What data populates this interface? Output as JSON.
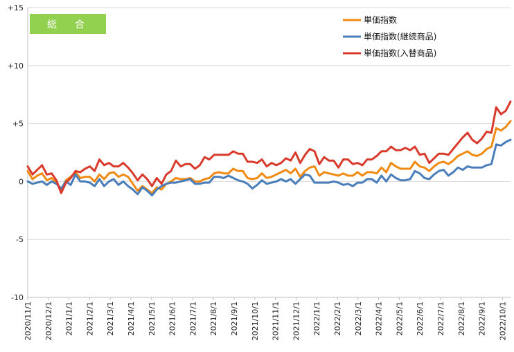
{
  "chart_data": {
    "type": "line",
    "title": "総　合",
    "badge_color": "#92d050",
    "ylim": [
      -10,
      15
    ],
    "y_ticks": [
      15,
      10,
      5,
      0,
      -5,
      -10
    ],
    "y_tick_labels": [
      "+15",
      "+10",
      "+5",
      "0",
      "-5",
      "-10"
    ],
    "x_tick_labels": [
      "2020/11/1",
      "2020/12/1",
      "2021/1/1",
      "2021/2/1",
      "2021/3/1",
      "2021/4/1",
      "2021/5/1",
      "2021/6/1",
      "2021/7/1",
      "2021/8/1",
      "2021/9/1",
      "2021/10/1",
      "2021/11/1",
      "2021/12/1",
      "2022/1/1",
      "2022/2/1",
      "2022/3/1",
      "2022/4/1",
      "2022/5/1",
      "2022/6/1",
      "2022/7/1",
      "2022/8/1",
      "2022/9/1",
      "2022/10/1"
    ],
    "grid": true,
    "legend_position": "top-right",
    "series": [
      {
        "name": "単価指数",
        "color": "#f08a12",
        "values": [
          0.9,
          0.2,
          0.5,
          0.7,
          0.1,
          0.3,
          -0.1,
          -0.7,
          0.1,
          0.4,
          0.8,
          0.3,
          0.4,
          0.4,
          0.0,
          0.6,
          0.2,
          0.7,
          0.8,
          0.4,
          0.6,
          0.4,
          -0.2,
          -0.8,
          -0.4,
          -0.7,
          -1.0,
          -0.5,
          -0.7,
          -0.2,
          0.0,
          0.3,
          0.2,
          0.2,
          0.3,
          0.0,
          0.0,
          0.2,
          0.3,
          0.7,
          0.8,
          0.7,
          0.7,
          1.1,
          0.9,
          0.9,
          0.3,
          0.2,
          0.3,
          0.7,
          0.3,
          0.4,
          0.6,
          0.8,
          1.0,
          0.7,
          1.1,
          0.4,
          0.9,
          1.2,
          1.3,
          0.5,
          0.8,
          0.7,
          0.6,
          0.5,
          0.7,
          0.5,
          0.5,
          0.8,
          0.5,
          0.8,
          0.8,
          0.7,
          1.2,
          0.8,
          1.6,
          1.3,
          1.1,
          1.1,
          1.1,
          1.7,
          1.3,
          1.2,
          0.9,
          1.3,
          1.6,
          1.7,
          1.5,
          1.8,
          2.2,
          2.4,
          2.6,
          2.3,
          2.2,
          2.4,
          2.8,
          3.0,
          4.6,
          4.4,
          4.7,
          5.2
        ]
      },
      {
        "name": "単価指数(継続商品)",
        "color": "#4a7ebb",
        "values": [
          0.0,
          -0.2,
          -0.1,
          0.0,
          -0.3,
          0.0,
          -0.2,
          -0.6,
          0.0,
          -0.3,
          0.6,
          0.0,
          0.0,
          -0.1,
          -0.4,
          0.2,
          -0.4,
          0.0,
          0.2,
          -0.3,
          0.0,
          -0.4,
          -0.7,
          -1.1,
          -0.5,
          -0.8,
          -1.2,
          -0.7,
          -0.4,
          -0.2,
          -0.1,
          -0.1,
          0.0,
          0.1,
          0.2,
          -0.2,
          -0.2,
          -0.1,
          -0.1,
          0.4,
          0.4,
          0.3,
          0.5,
          0.3,
          0.1,
          0.0,
          -0.2,
          -0.6,
          -0.3,
          0.1,
          -0.2,
          -0.1,
          0.0,
          0.2,
          0.0,
          0.2,
          -0.2,
          0.2,
          0.6,
          0.5,
          -0.1,
          -0.1,
          -0.1,
          -0.1,
          0.0,
          -0.1,
          -0.3,
          -0.2,
          -0.4,
          -0.1,
          -0.1,
          0.2,
          0.2,
          -0.1,
          0.5,
          0.0,
          0.6,
          0.3,
          0.1,
          0.1,
          0.2,
          0.9,
          0.7,
          0.3,
          0.2,
          0.6,
          0.9,
          1.0,
          0.5,
          0.8,
          1.2,
          1.0,
          1.3,
          1.2,
          1.2,
          1.2,
          1.4,
          1.5,
          3.2,
          3.1,
          3.4,
          3.6
        ]
      },
      {
        "name": "単価指数(入替商品)",
        "color": "#d93a2b",
        "values": [
          1.3,
          0.6,
          1.0,
          1.4,
          0.6,
          0.7,
          0.1,
          -1.0,
          -0.1,
          0.3,
          0.9,
          0.8,
          1.1,
          1.3,
          0.9,
          1.9,
          1.4,
          1.6,
          1.3,
          1.3,
          1.6,
          1.2,
          0.7,
          0.1,
          0.6,
          0.2,
          -0.4,
          0.3,
          -0.2,
          0.6,
          0.9,
          1.8,
          1.3,
          1.5,
          1.5,
          1.1,
          1.4,
          2.1,
          1.9,
          2.3,
          2.3,
          2.3,
          2.3,
          2.6,
          2.4,
          2.4,
          1.7,
          1.7,
          1.6,
          1.9,
          1.3,
          1.6,
          1.4,
          1.6,
          2.0,
          1.8,
          2.5,
          1.6,
          2.3,
          2.8,
          2.6,
          1.5,
          2.1,
          1.8,
          1.8,
          1.2,
          1.9,
          1.9,
          1.5,
          1.6,
          1.4,
          1.9,
          1.9,
          2.2,
          2.6,
          2.6,
          3.0,
          2.7,
          2.7,
          2.9,
          2.7,
          3.0,
          2.3,
          2.4,
          1.6,
          2.0,
          2.4,
          2.4,
          2.3,
          2.8,
          3.3,
          3.8,
          4.2,
          3.6,
          3.3,
          3.7,
          4.3,
          4.2,
          6.4,
          5.8,
          6.1,
          6.9
        ]
      }
    ]
  }
}
